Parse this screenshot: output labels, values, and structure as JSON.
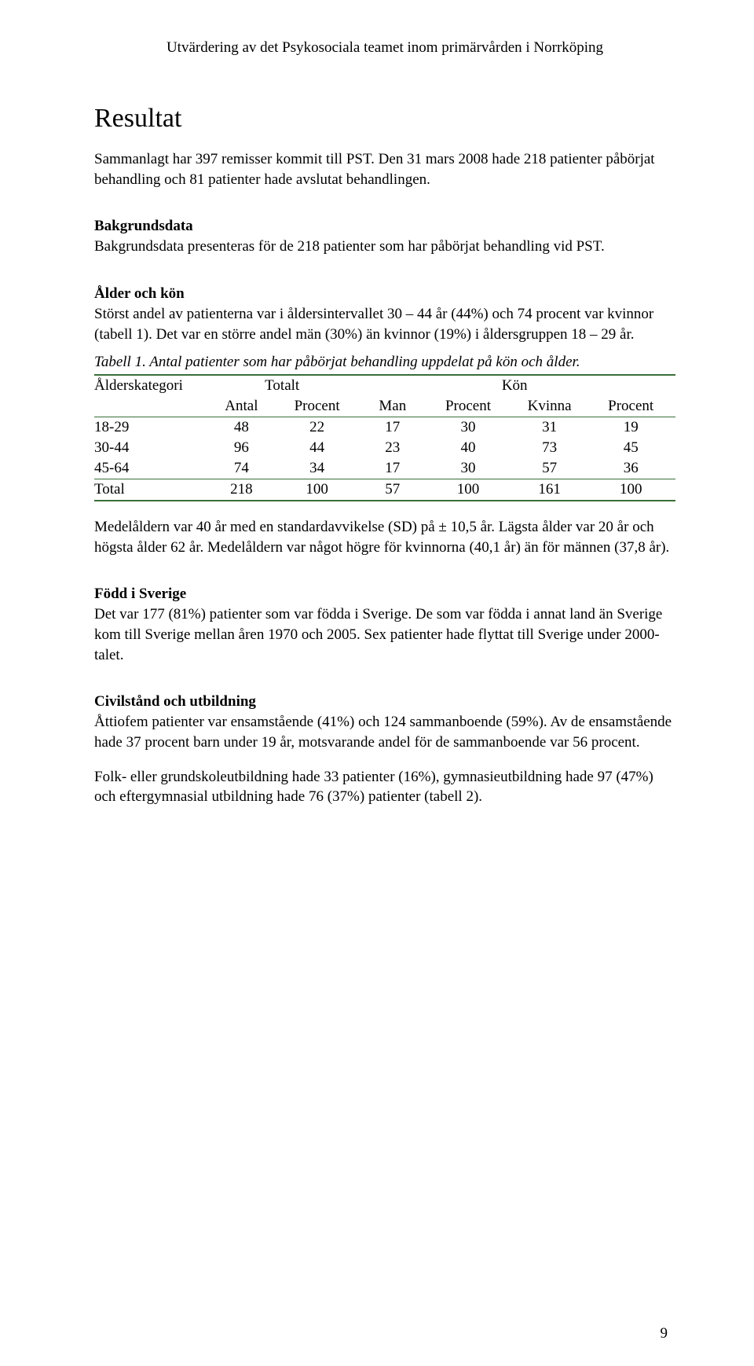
{
  "header": {
    "running_title": "Utvärdering av det Psykosociala teamet inom primärvården i Norrköping"
  },
  "section_title": "Resultat",
  "intro_para": "Sammanlagt har 397 remisser kommit till PST. Den 31 mars 2008 hade 218 patienter påbörjat behandling och 81 patienter hade avslutat behandlingen.",
  "bakgrund": {
    "heading": "Bakgrundsdata",
    "text": "Bakgrundsdata presenteras för de 218 patienter som har påbörjat behandling vid PST."
  },
  "alder": {
    "heading": "Ålder och kön",
    "text": "Störst andel av patienterna var i åldersintervallet 30 – 44 år (44%) och 74 procent var kvinnor (tabell 1). Det var en större andel män (30%) än kvinnor (19%) i åldersgruppen 18 – 29 år."
  },
  "table1": {
    "caption": "Tabell 1. Antal patienter som har påbörjat behandling uppdelat på kön och ålder.",
    "columns": {
      "group1": "Ålderskategori",
      "group2": "Totalt",
      "group3": "Kön",
      "sub": [
        "Antal",
        "Procent",
        "Man",
        "Procent",
        "Kvinna",
        "Procent"
      ]
    },
    "rows": [
      {
        "label": "18-29",
        "vals": [
          "48",
          "22",
          "17",
          "30",
          "31",
          "19"
        ]
      },
      {
        "label": "30-44",
        "vals": [
          "96",
          "44",
          "23",
          "40",
          "73",
          "45"
        ]
      },
      {
        "label": "45-64",
        "vals": [
          "74",
          "34",
          "17",
          "30",
          "57",
          "36"
        ]
      }
    ],
    "total": {
      "label": "Total",
      "vals": [
        "218",
        "100",
        "57",
        "100",
        "161",
        "100"
      ]
    },
    "colors": {
      "rule": "#3a6e3a"
    }
  },
  "after_table": "Medelåldern var 40 år med en standardavvikelse (SD) på ± 10,5 år. Lägsta ålder var 20 år och högsta ålder 62 år. Medelåldern var något högre för kvinnorna (40,1 år) än för männen (37,8 år).",
  "fodd": {
    "heading": "Född i Sverige",
    "text": "Det var 177 (81%) patienter som var födda i Sverige. De som var födda i annat land än Sverige kom till Sverige mellan åren 1970 och 2005. Sex patienter hade flyttat till Sverige under 2000-talet."
  },
  "civil": {
    "heading": "Civilstånd och utbildning",
    "p1": "Åttiofem patienter var ensamstående (41%) och 124 sammanboende (59%). Av de ensamstående hade 37 procent barn under 19 år, motsvarande andel för de sammanboende var 56 procent.",
    "p2": "Folk- eller grundskoleutbildning hade 33 patienter (16%), gymnasieutbildning hade 97 (47%) och eftergymnasial utbildning hade 76 (37%) patienter (tabell 2)."
  },
  "page_number": "9"
}
